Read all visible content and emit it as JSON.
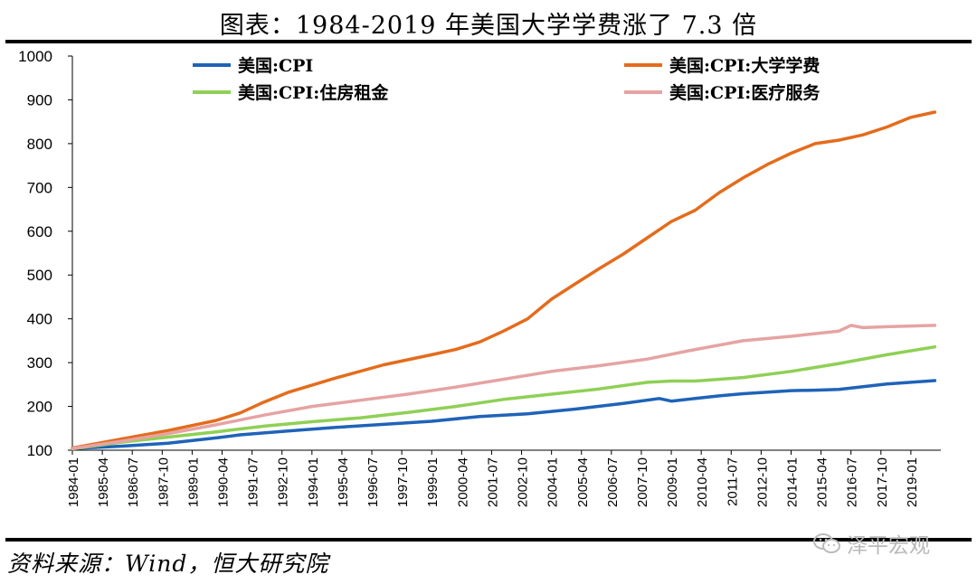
{
  "header": {
    "title": "图表：1984-2019 年美国大学学费涨了 7.3 倍"
  },
  "footer": {
    "source": "资料来源：Wind，恒大研究院",
    "watermark": "泽平宏观"
  },
  "colors": {
    "cpi": "#1f63b8",
    "tuition": "#e46c1c",
    "housing": "#8fd055",
    "medical": "#e6a3a3"
  },
  "chart_data": {
    "type": "line",
    "title": "",
    "xlabel": "",
    "ylabel": "",
    "ylim": [
      100,
      1000
    ],
    "yticks": [
      100,
      200,
      300,
      400,
      500,
      600,
      700,
      800,
      900,
      1000
    ],
    "x_ticks": [
      "1984-01",
      "1985-04",
      "1986-07",
      "1987-10",
      "1989-01",
      "1990-04",
      "1991-07",
      "1992-10",
      "1994-01",
      "1995-04",
      "1996-07",
      "1997-10",
      "1999-01",
      "2000-04",
      "2001-07",
      "2002-10",
      "2004-01",
      "2005-04",
      "2006-07",
      "2007-10",
      "2009-01",
      "2010-04",
      "2011-07",
      "2012-10",
      "2014-01",
      "2015-04",
      "2016-07",
      "2017-10",
      "2019-01"
    ],
    "x_range_years": [
      1984.0,
      2020.25
    ],
    "legend_position": "top",
    "series": [
      {
        "name": "美国:CPI",
        "color_key": "cpi",
        "x": [
          1984.0,
          1986.0,
          1988.0,
          1990.0,
          1991.0,
          1993.0,
          1995.0,
          1997.0,
          1999.0,
          2001.0,
          2003.0,
          2005.0,
          2007.0,
          2008.5,
          2009.0,
          2010.0,
          2011.0,
          2012.0,
          2014.0,
          2015.0,
          2016.0,
          2017.0,
          2018.0,
          2019.0,
          2020.0
        ],
        "values": [
          104,
          109,
          116,
          128,
          135,
          144,
          152,
          159,
          166,
          177,
          183,
          194,
          207,
          218,
          212,
          218,
          224,
          229,
          236,
          237,
          239,
          245,
          251,
          255,
          259
        ]
      },
      {
        "name": "美国:CPI:大学学费",
        "color_key": "tuition",
        "x": [
          1984.0,
          1986.0,
          1988.0,
          1990.0,
          1991.0,
          1992.0,
          1993.0,
          1995.0,
          1997.0,
          1999.0,
          2000.0,
          2001.0,
          2002.0,
          2003.0,
          2004.0,
          2005.0,
          2006.0,
          2007.0,
          2008.0,
          2009.0,
          2010.0,
          2011.0,
          2012.0,
          2013.0,
          2014.0,
          2015.0,
          2016.0,
          2017.0,
          2018.0,
          2019.0,
          2020.0
        ],
        "values": [
          105,
          125,
          145,
          168,
          185,
          210,
          232,
          265,
          295,
          318,
          330,
          347,
          372,
          400,
          445,
          480,
          515,
          548,
          585,
          622,
          648,
          688,
          722,
          752,
          778,
          800,
          808,
          820,
          838,
          860,
          872
        ]
      },
      {
        "name": "美国:CPI:住房租金",
        "color_key": "housing",
        "x": [
          1984.0,
          1986.0,
          1988.0,
          1990.0,
          1992.0,
          1994.0,
          1996.0,
          1998.0,
          2000.0,
          2002.0,
          2004.0,
          2006.0,
          2008.0,
          2009.0,
          2010.0,
          2012.0,
          2014.0,
          2016.0,
          2018.0,
          2020.0
        ],
        "values": [
          103,
          118,
          130,
          142,
          155,
          165,
          174,
          186,
          200,
          216,
          228,
          240,
          255,
          258,
          258,
          266,
          280,
          298,
          318,
          336
        ]
      },
      {
        "name": "美国:CPI:医疗服务",
        "color_key": "medical",
        "x": [
          1984.0,
          1986.0,
          1988.0,
          1990.0,
          1992.0,
          1994.0,
          1996.0,
          1998.0,
          2000.0,
          2002.0,
          2004.0,
          2006.0,
          2008.0,
          2010.0,
          2012.0,
          2014.0,
          2016.0,
          2016.5,
          2017.0,
          2018.0,
          2020.0
        ],
        "values": [
          104,
          120,
          138,
          158,
          180,
          200,
          214,
          228,
          244,
          262,
          280,
          293,
          308,
          330,
          350,
          360,
          372,
          385,
          380,
          382,
          385
        ]
      }
    ]
  }
}
